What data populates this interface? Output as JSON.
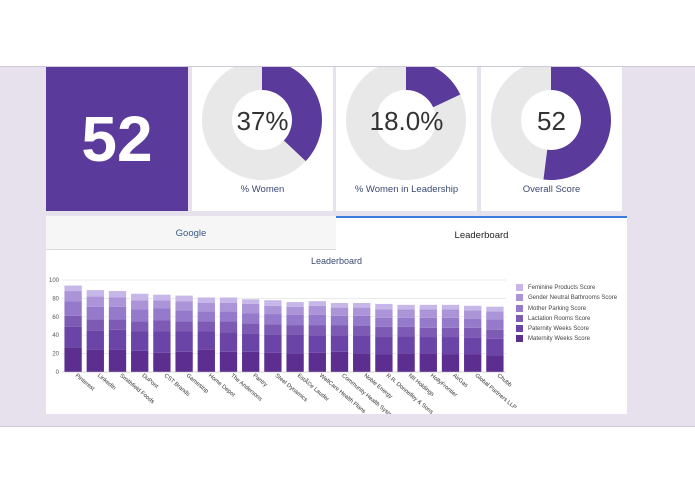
{
  "header": {
    "overall_score_value": "52"
  },
  "metrics": [
    {
      "label": "% Women",
      "display": "37%",
      "fraction": 0.37
    },
    {
      "label": "% Women in Leadership",
      "display": "18.0%",
      "fraction": 0.18
    },
    {
      "label": "Overall Score",
      "display": "52",
      "fraction": 0.52
    }
  ],
  "tabs": [
    {
      "label": "Google",
      "active": false
    },
    {
      "label": "Leaderboard",
      "active": true
    }
  ],
  "colors": {
    "accent": "#5a3a9b",
    "ring_track": "#e8e8e8",
    "tab_active_border": "#3b7ddd",
    "band_bg": "#e6e1ec"
  },
  "chart_data": {
    "type": "bar",
    "stacked": true,
    "title": "Leaderboard",
    "ylim": [
      0,
      100
    ],
    "yticks": [
      0,
      20,
      40,
      60,
      80,
      100
    ],
    "grid": true,
    "legend_position": "right",
    "categories": [
      "Pinterest",
      "LinkedIn",
      "Smithfield Foods",
      "DuPont",
      "CST Brands",
      "Gamestop",
      "Home Depot",
      "The Andersons",
      "Pantry",
      "Steel Dynamics",
      "EstÃ©e Lauder",
      "WellCare Health Plans",
      "Community Health Systems",
      "Noble Energy",
      "R.R. Donnelley & Sons",
      "NII Holdings",
      "HollyFrontier",
      "AirGas",
      "Global Partners LLP",
      "Chubb"
    ],
    "series": [
      {
        "name": "Maternity Weeks Score",
        "color": "#5b2e90",
        "values": [
          27,
          24,
          24,
          23,
          21,
          22,
          24,
          22,
          22,
          21,
          20,
          21,
          22,
          20,
          19,
          20,
          20,
          19,
          19,
          18
        ]
      },
      {
        "name": "Paternity Weeks Score",
        "color": "#6a44a6",
        "values": [
          22,
          21,
          22,
          21,
          23,
          22,
          20,
          21,
          20,
          20,
          21,
          19,
          18,
          20,
          19,
          19,
          18,
          19,
          18,
          18
        ]
      },
      {
        "name": "Lactation Rooms Score",
        "color": "#7d5bb5",
        "values": [
          12,
          12,
          11,
          11,
          12,
          11,
          11,
          12,
          11,
          11,
          10,
          11,
          11,
          10,
          11,
          10,
          10,
          10,
          11,
          10
        ]
      },
      {
        "name": "Mother Parking Score",
        "color": "#957acb",
        "values": [
          16,
          14,
          14,
          13,
          13,
          12,
          11,
          11,
          11,
          11,
          11,
          11,
          10,
          11,
          10,
          10,
          11,
          11,
          10,
          11
        ]
      },
      {
        "name": "Gender Neutral Bathrooms Score",
        "color": "#ab95d8",
        "values": [
          11,
          11,
          10,
          10,
          9,
          10,
          9,
          9,
          10,
          9,
          9,
          10,
          9,
          9,
          9,
          9,
          9,
          9,
          9,
          9
        ]
      },
      {
        "name": "Feminine Products Score",
        "color": "#c7b6e8",
        "values": [
          6,
          7,
          7,
          7,
          6,
          6,
          6,
          6,
          5,
          6,
          5,
          5,
          5,
          5,
          6,
          5,
          5,
          5,
          5,
          5
        ]
      }
    ]
  }
}
